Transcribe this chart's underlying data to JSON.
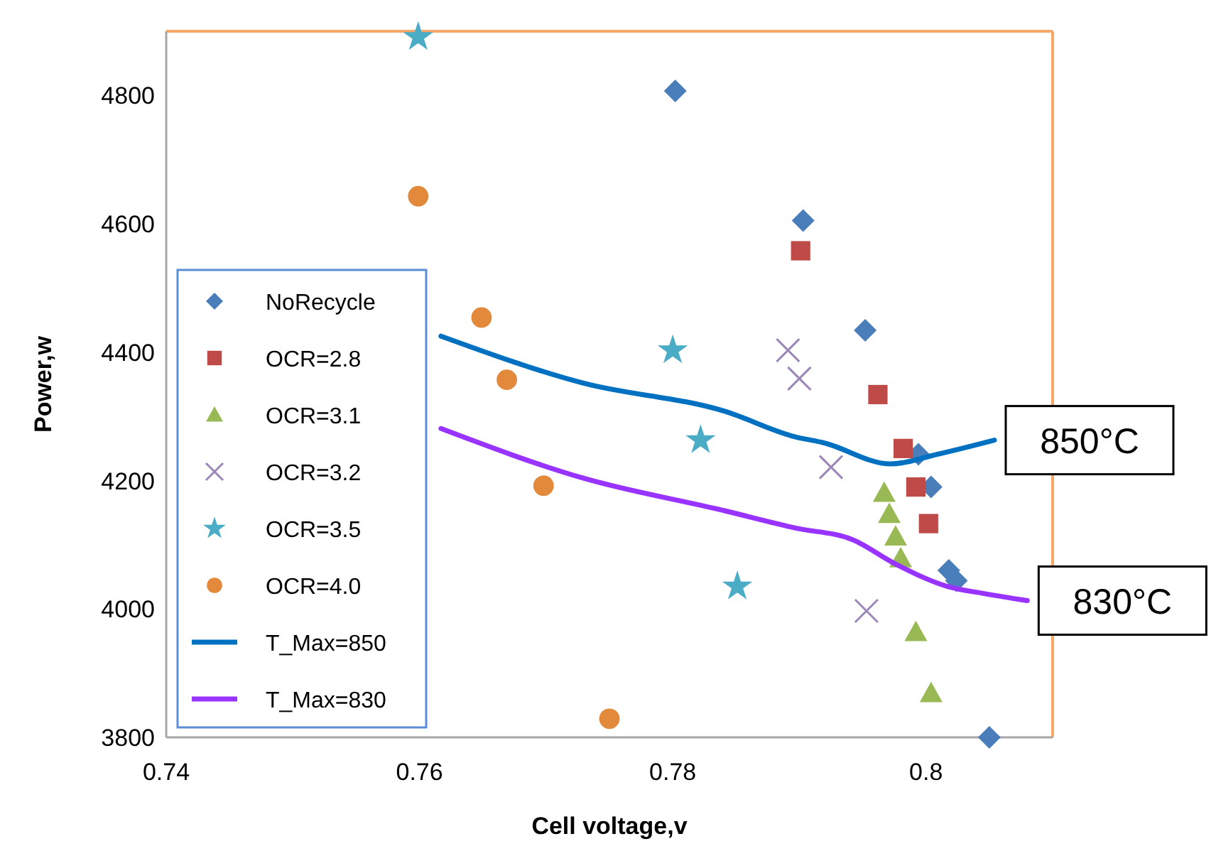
{
  "chart_data": {
    "type": "scatter",
    "xlabel": "Cell voltage,v",
    "ylabel": "Power,w",
    "xlim": [
      0.74,
      0.81
    ],
    "ylim": [
      3800,
      4900
    ],
    "xticks": [
      0.74,
      0.76,
      0.78,
      0.8
    ],
    "yticks": [
      3800,
      4000,
      4200,
      4400,
      4600,
      4800
    ],
    "grid": false,
    "legend": "left",
    "series": [
      {
        "name": "NoRecycle",
        "color": "#4a7ebb",
        "marker": "diamond",
        "x": [
          0.7802,
          0.7903,
          0.7952,
          0.7994,
          0.8004,
          0.8018,
          0.8024,
          0.805
        ],
        "values": [
          4807,
          4605,
          4434,
          4241,
          4190,
          4060,
          4044,
          3800
        ]
      },
      {
        "name": "OCR=2.8",
        "color": "#be4b48",
        "marker": "square",
        "x": [
          0.7901,
          0.7962,
          0.7982,
          0.7992,
          0.8002
        ],
        "values": [
          4558,
          4334,
          4250,
          4190,
          4133
        ]
      },
      {
        "name": "OCR=3.1",
        "color": "#98b954",
        "marker": "triangle",
        "x": [
          0.7967,
          0.7971,
          0.7976,
          0.798,
          0.7992,
          0.8004
        ],
        "values": [
          4181,
          4148,
          4113,
          4079,
          3964,
          3869
        ]
      },
      {
        "name": "OCR=3.2",
        "color": "#9b87b8",
        "marker": "cross",
        "x": [
          0.7891,
          0.79,
          0.7925,
          0.7953
        ],
        "values": [
          4403,
          4359,
          4221,
          3997
        ]
      },
      {
        "name": "OCR=3.5",
        "color": "#4bacc6",
        "marker": "star",
        "x": [
          0.7599,
          0.78,
          0.7822,
          0.7851
        ],
        "values": [
          4891,
          4403,
          4263,
          4035
        ]
      },
      {
        "name": "OCR=4.0",
        "color": "#e3893b",
        "marker": "circle",
        "x": [
          0.7599,
          0.7649,
          0.7669,
          0.7698,
          0.775
        ],
        "values": [
          4643,
          4454,
          4357,
          4192,
          3829
        ]
      },
      {
        "name": "T_Max=850",
        "type": "line",
        "color": "#0070c0",
        "marker": "none",
        "x": [
          0.7617,
          0.7729,
          0.7841,
          0.7897,
          0.7919,
          0.7972,
          0.8009,
          0.8054
        ],
        "values": [
          4425,
          4352,
          4308,
          4268,
          4259,
          4226,
          4241,
          4263
        ]
      },
      {
        "name": "T_Max=830",
        "type": "line",
        "color": "#9933ff",
        "marker": "none",
        "x": [
          0.7617,
          0.7729,
          0.7841,
          0.7897,
          0.7942,
          0.7975,
          0.8017,
          0.8046,
          0.808
        ],
        "values": [
          4281,
          4204,
          4153,
          4126,
          4108,
          4071,
          4035,
          4024,
          4013
        ]
      }
    ],
    "annotations": [
      "850°C",
      "830°C"
    ]
  }
}
